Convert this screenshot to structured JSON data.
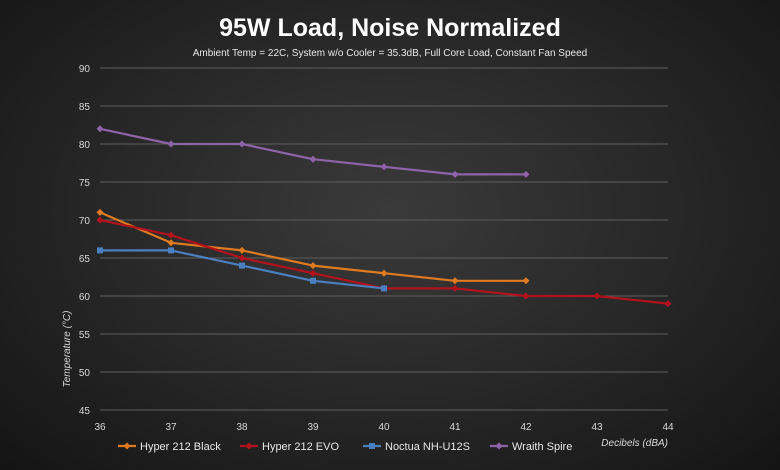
{
  "chart_data": {
    "type": "line",
    "title": "95W Load, Noise Normalized",
    "subtitle": "Ambient Temp = 22C, System w/o Cooler = 35.3dB, Full Core Load, Constant Fan Speed",
    "xlabel": "Decibels (dBA)",
    "ylabel": "Temperature (°C)",
    "xlim": [
      36,
      44
    ],
    "ylim": [
      45,
      90
    ],
    "x_ticks": [
      36,
      37,
      38,
      39,
      40,
      41,
      42,
      43,
      44
    ],
    "y_ticks": [
      45,
      50,
      55,
      60,
      65,
      70,
      75,
      80,
      85,
      90
    ],
    "grid": true,
    "legend_position": "bottom",
    "series": [
      {
        "name": "Hyper 212 Black",
        "color": "#e07a1f",
        "marker": "diamond",
        "x": [
          36,
          37,
          38,
          39,
          40,
          41,
          42
        ],
        "values": [
          71,
          67,
          66,
          64,
          63,
          62,
          62
        ]
      },
      {
        "name": "Hyper 212 EVO",
        "color": "#b3121d",
        "marker": "diamond",
        "x": [
          36,
          37,
          38,
          39,
          40,
          41,
          42,
          43,
          44
        ],
        "values": [
          70,
          68,
          65,
          63,
          61,
          61,
          60,
          60,
          59
        ]
      },
      {
        "name": "Noctua NH-U12S",
        "color": "#4a7fc0",
        "marker": "square",
        "x": [
          36,
          37,
          38,
          39,
          40
        ],
        "values": [
          66,
          66,
          64,
          62,
          61
        ]
      },
      {
        "name": "Wraith Spire",
        "color": "#8d64a8",
        "marker": "diamond",
        "x": [
          36,
          37,
          38,
          39,
          40,
          41,
          42
        ],
        "values": [
          82,
          80,
          80,
          78,
          77,
          76,
          76
        ]
      }
    ]
  }
}
